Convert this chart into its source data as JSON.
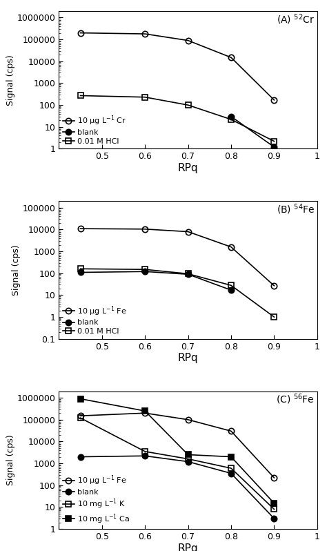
{
  "rpq": [
    0.45,
    0.6,
    0.7,
    0.8,
    0.9
  ],
  "panel_A": {
    "title": "(A) $^{52}$Cr",
    "series": [
      {
        "label": "10 μg L$^{-1}$ Cr",
        "y": [
          200000,
          180000,
          90000,
          15000,
          170
        ],
        "marker": "o",
        "fillstyle": "none",
        "color": "black",
        "linewidth": 1.2
      },
      {
        "label": "blank",
        "y": [
          null,
          null,
          null,
          30,
          1.2
        ],
        "marker": "o",
        "fillstyle": "full",
        "color": "black",
        "linewidth": 1.2
      },
      {
        "label": "0.01 M HCl",
        "y": [
          270,
          230,
          100,
          22,
          2.2
        ],
        "marker": "s",
        "fillstyle": "none",
        "color": "black",
        "linewidth": 1.2
      }
    ],
    "ylim": [
      1,
      2000000
    ],
    "yticks": [
      1,
      10,
      100,
      1000,
      10000,
      100000,
      1000000
    ],
    "yticklabels": [
      "1",
      "10",
      "100",
      "1000",
      "10000",
      "100000",
      "1000000"
    ]
  },
  "panel_B": {
    "title": "(B) $^{54}$Fe",
    "series": [
      {
        "label": "10 μg L$^{-1}$ Fe",
        "y": [
          11000,
          10500,
          8000,
          1600,
          27
        ],
        "marker": "o",
        "fillstyle": "none",
        "color": "black",
        "linewidth": 1.2
      },
      {
        "label": "blank",
        "y": [
          110,
          120,
          90,
          17,
          null
        ],
        "marker": "o",
        "fillstyle": "full",
        "color": "black",
        "linewidth": 1.2
      },
      {
        "label": "0.01 M HCl",
        "y": [
          160,
          150,
          95,
          28,
          1.0
        ],
        "marker": "s",
        "fillstyle": "none",
        "color": "black",
        "linewidth": 1.2
      }
    ],
    "ylim": [
      0.1,
      200000
    ],
    "yticks": [
      0.1,
      1,
      10,
      100,
      1000,
      10000,
      100000
    ],
    "yticklabels": [
      "0.1",
      "1",
      "10",
      "100",
      "1000",
      "10000",
      "100000"
    ]
  },
  "panel_C": {
    "title": "(C) $^{56}$Fe",
    "series": [
      {
        "label": "10 μg L$^{-1}$ Fe",
        "y": [
          150000,
          200000,
          100000,
          30000,
          220
        ],
        "marker": "o",
        "fillstyle": "none",
        "color": "black",
        "linewidth": 1.2
      },
      {
        "label": "blank",
        "y": [
          2000,
          2200,
          1200,
          350,
          3
        ],
        "marker": "o",
        "fillstyle": "full",
        "color": "black",
        "linewidth": 1.2
      },
      {
        "label": "10 mg L$^{-1}$ K",
        "y": [
          120000,
          3500,
          1600,
          600,
          8
        ],
        "marker": "s",
        "fillstyle": "none",
        "color": "black",
        "linewidth": 1.2
      },
      {
        "label": "10 mg L$^{-1}$ Ca",
        "y": [
          900000,
          250000,
          2500,
          2000,
          15
        ],
        "marker": "s",
        "fillstyle": "full",
        "color": "black",
        "linewidth": 1.2
      }
    ],
    "ylim": [
      1,
      2000000
    ],
    "yticks": [
      1,
      10,
      100,
      1000,
      10000,
      100000,
      1000000
    ],
    "yticklabels": [
      "1",
      "10",
      "100",
      "1000",
      "10000",
      "100000",
      "1000000"
    ]
  },
  "xlabel": "RPq",
  "ylabel": "Signal (cps)",
  "xlim": [
    0.4,
    1.0
  ],
  "xticks": [
    0.4,
    0.5,
    0.6,
    0.7,
    0.8,
    0.9,
    1.0
  ],
  "xticklabels": [
    "",
    "0.5",
    "0.6",
    "0.7",
    "0.8",
    "0.9",
    "1"
  ]
}
